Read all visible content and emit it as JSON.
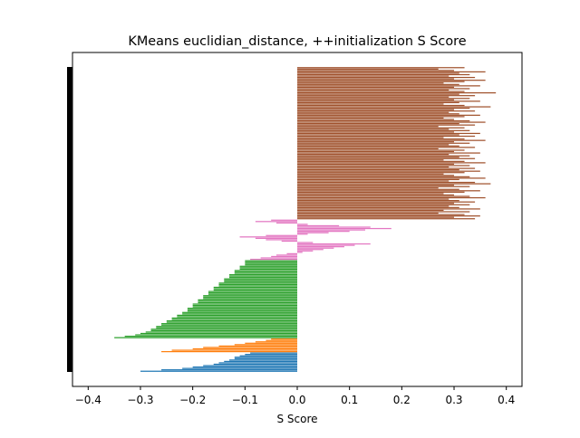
{
  "chart_data": {
    "type": "bar",
    "orientation": "horizontal",
    "title": "KMeans euclidian_distance, ++initialization S Score",
    "xlabel": "S Score",
    "ylabel": "",
    "xlim": [
      -0.43,
      0.43
    ],
    "xticks": [
      -0.4,
      -0.3,
      -0.2,
      -0.1,
      0.0,
      0.1,
      0.2,
      0.3,
      0.4
    ],
    "xtick_labels": [
      "−0.4",
      "−0.3",
      "−0.2",
      "−0.1",
      "0.0",
      "0.1",
      "0.2",
      "0.3",
      "0.4"
    ],
    "grid": false,
    "legend": "none",
    "series": [
      {
        "cluster": 0,
        "color": "#1f77b4",
        "values": [
          -0.3,
          -0.26,
          -0.22,
          -0.2,
          -0.18,
          -0.16,
          -0.15,
          -0.14,
          -0.13,
          -0.12,
          -0.12,
          -0.11,
          -0.1,
          -0.09
        ]
      },
      {
        "cluster": 1,
        "color": "#ff7f0e",
        "values": [
          -0.26,
          -0.24,
          -0.2,
          -0.18,
          -0.15,
          -0.12,
          -0.1,
          -0.08,
          -0.06,
          -0.05
        ]
      },
      {
        "cluster": 2,
        "color": "#2ca02c",
        "values": [
          -0.35,
          -0.33,
          -0.31,
          -0.3,
          -0.29,
          -0.28,
          -0.28,
          -0.27,
          -0.27,
          -0.26,
          -0.26,
          -0.25,
          -0.25,
          -0.24,
          -0.24,
          -0.23,
          -0.23,
          -0.22,
          -0.22,
          -0.21,
          -0.21,
          -0.21,
          -0.2,
          -0.2,
          -0.2,
          -0.19,
          -0.19,
          -0.19,
          -0.18,
          -0.18,
          -0.18,
          -0.17,
          -0.17,
          -0.17,
          -0.16,
          -0.16,
          -0.16,
          -0.15,
          -0.15,
          -0.15,
          -0.14,
          -0.14,
          -0.14,
          -0.13,
          -0.13,
          -0.13,
          -0.12,
          -0.12,
          -0.12,
          -0.11,
          -0.11,
          -0.11,
          -0.1,
          -0.1,
          -0.1,
          -0.1
        ]
      },
      {
        "cluster": 3,
        "color": "#e377c2",
        "values": [
          -0.09,
          -0.07,
          -0.05,
          -0.04,
          -0.02,
          0.01,
          0.03,
          0.05,
          0.07,
          0.09,
          0.11,
          0.14,
          0.03,
          -0.03,
          -0.06,
          -0.08,
          -0.11,
          -0.06,
          0.02,
          0.06,
          0.1,
          0.13,
          0.18,
          0.14,
          0.08,
          0.02,
          -0.04,
          -0.08,
          -0.05
        ]
      },
      {
        "cluster": 4,
        "color": "#a0522d",
        "values": [
          0.34,
          0.3,
          0.35,
          0.32,
          0.27,
          0.33,
          0.28,
          0.35,
          0.31,
          0.29,
          0.33,
          0.3,
          0.34,
          0.31,
          0.29,
          0.36,
          0.33,
          0.3,
          0.28,
          0.32,
          0.35,
          0.31,
          0.27,
          0.33,
          0.3,
          0.37,
          0.34,
          0.29,
          0.31,
          0.36,
          0.33,
          0.3,
          0.28,
          0.32,
          0.35,
          0.31,
          0.34,
          0.29,
          0.33,
          0.3,
          0.36,
          0.32,
          0.28,
          0.34,
          0.31,
          0.33,
          0.29,
          0.35,
          0.3,
          0.32,
          0.27,
          0.34,
          0.31,
          0.29,
          0.33,
          0.3,
          0.36,
          0.32,
          0.28,
          0.34,
          0.31,
          0.35,
          0.3,
          0.33,
          0.29,
          0.32,
          0.27,
          0.34,
          0.31,
          0.36,
          0.33,
          0.3,
          0.28,
          0.32,
          0.35,
          0.31,
          0.29,
          0.34,
          0.3,
          0.33,
          0.37,
          0.32,
          0.28,
          0.31,
          0.35,
          0.3,
          0.33,
          0.29,
          0.34,
          0.31,
          0.38,
          0.32,
          0.29,
          0.33,
          0.3,
          0.35,
          0.31,
          0.28,
          0.32,
          0.36,
          0.3,
          0.34,
          0.29,
          0.33,
          0.31,
          0.36,
          0.3,
          0.27,
          0.32
        ]
      }
    ]
  }
}
